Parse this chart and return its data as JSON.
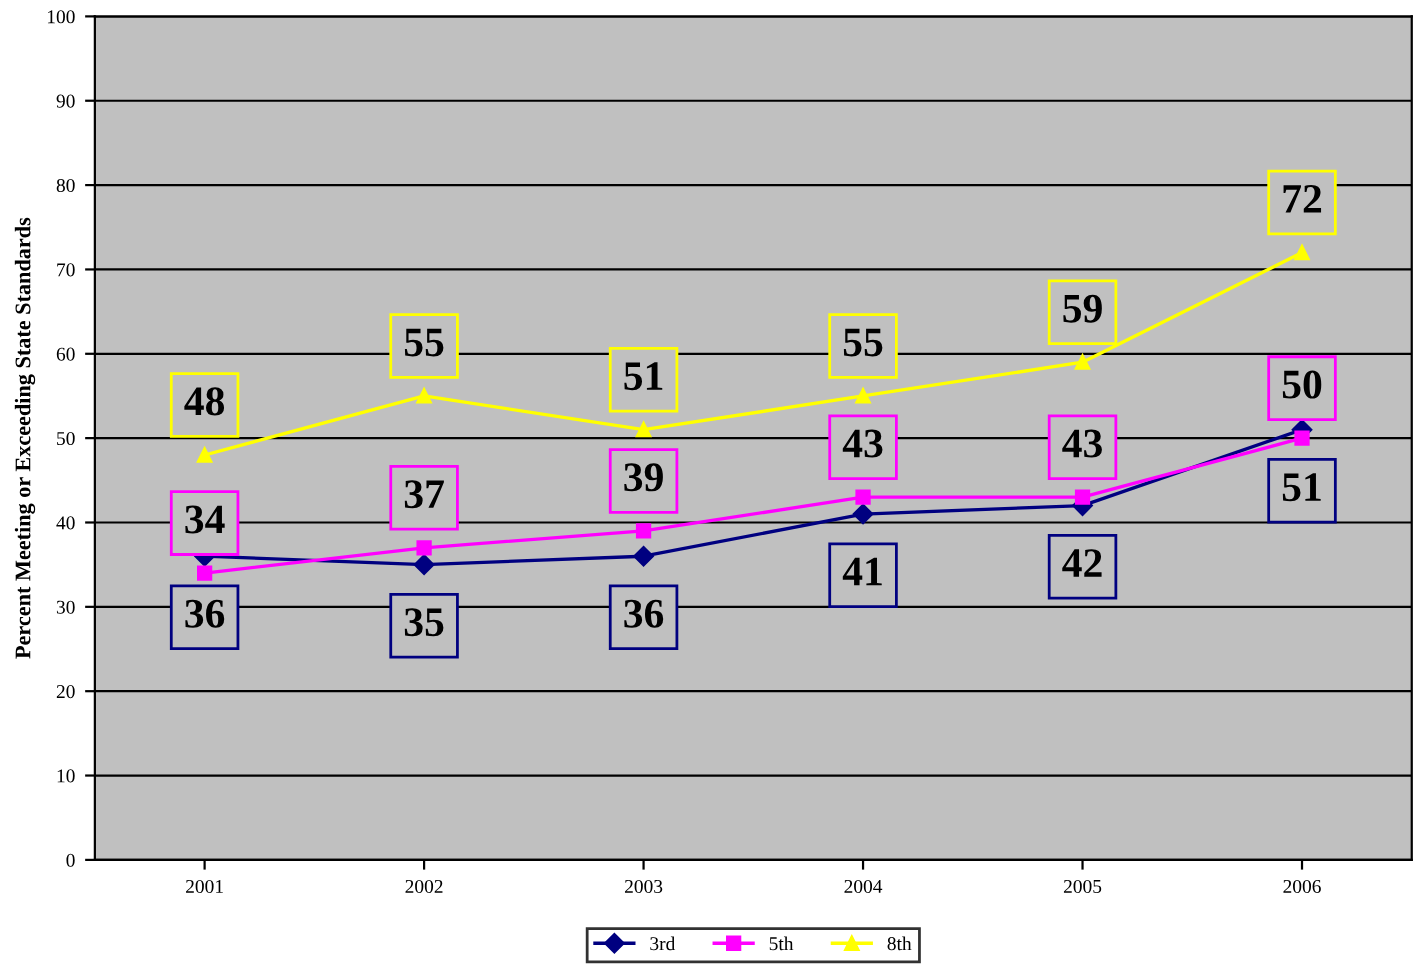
{
  "chart_data": {
    "type": "line",
    "ylabel": "Percent Meeting or Exceeding State Standards",
    "categories": [
      "2001",
      "2002",
      "2003",
      "2004",
      "2005",
      "2006"
    ],
    "series": [
      {
        "name": "3rd",
        "color": "#000080",
        "marker": "diamond",
        "values": [
          36,
          35,
          36,
          41,
          42,
          51
        ]
      },
      {
        "name": "5th",
        "color": "#ff00ff",
        "marker": "square",
        "values": [
          34,
          37,
          39,
          43,
          43,
          50
        ]
      },
      {
        "name": "8th",
        "color": "#ffff00",
        "marker": "triangle",
        "values": [
          48,
          55,
          51,
          55,
          59,
          72
        ]
      }
    ],
    "ylim": [
      0,
      100
    ],
    "yticks": [
      0,
      10,
      20,
      30,
      40,
      50,
      60,
      70,
      80,
      90,
      100
    ],
    "grid": "y",
    "legend": "bottom",
    "data_labels": true
  }
}
